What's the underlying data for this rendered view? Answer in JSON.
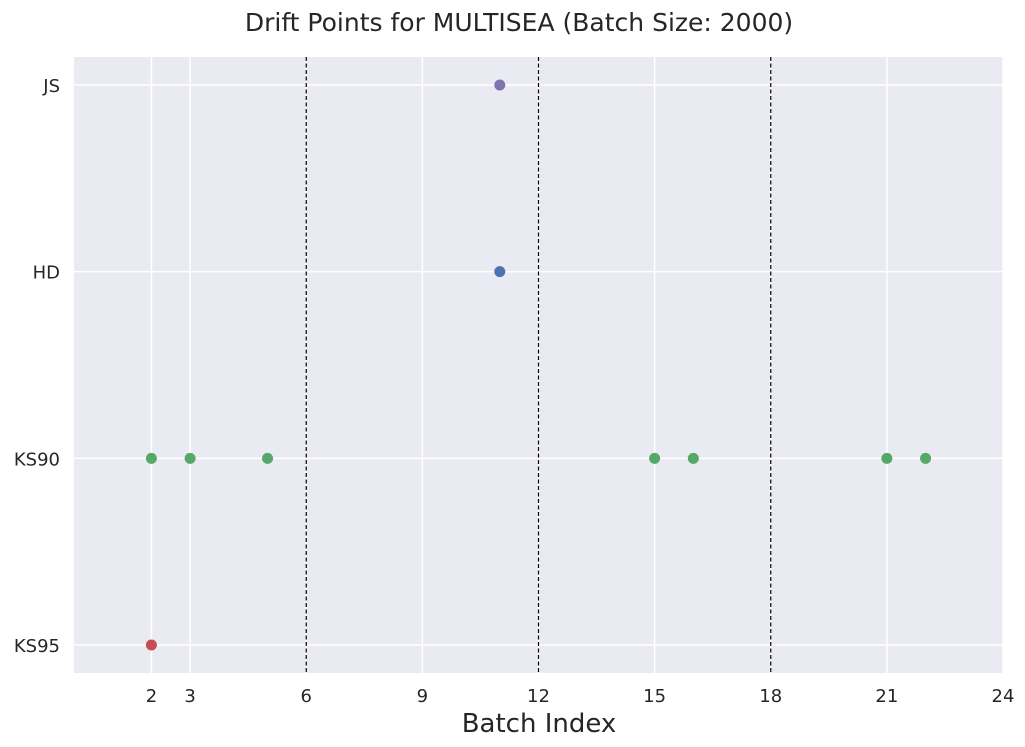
{
  "chart_data": {
    "type": "scatter",
    "title": "Drift Points for MULTISEA (Batch Size: 2000)",
    "xlabel": "Batch Index",
    "ylabel": "",
    "xlim": [
      0,
      24
    ],
    "xticks": [
      2,
      3,
      6,
      9,
      12,
      15,
      18,
      21,
      24
    ],
    "categories": [
      "JS",
      "HD",
      "KS90",
      "KS95"
    ],
    "grid": true,
    "vertical_lines": {
      "x": [
        6,
        12,
        18
      ],
      "style": "dashed",
      "color": "#000000"
    },
    "series": [
      {
        "category": "JS",
        "x": [
          11
        ],
        "color": "#8172b2"
      },
      {
        "category": "HD",
        "x": [
          11
        ],
        "color": "#4c72b0"
      },
      {
        "category": "KS90",
        "x": [
          2,
          3,
          5,
          15,
          16,
          21,
          22
        ],
        "color": "#55a868"
      },
      {
        "category": "KS95",
        "x": [
          2
        ],
        "color": "#c44e52"
      }
    ],
    "colors": {
      "plot_background": "#eaeaf2",
      "grid": "#ffffff"
    }
  }
}
